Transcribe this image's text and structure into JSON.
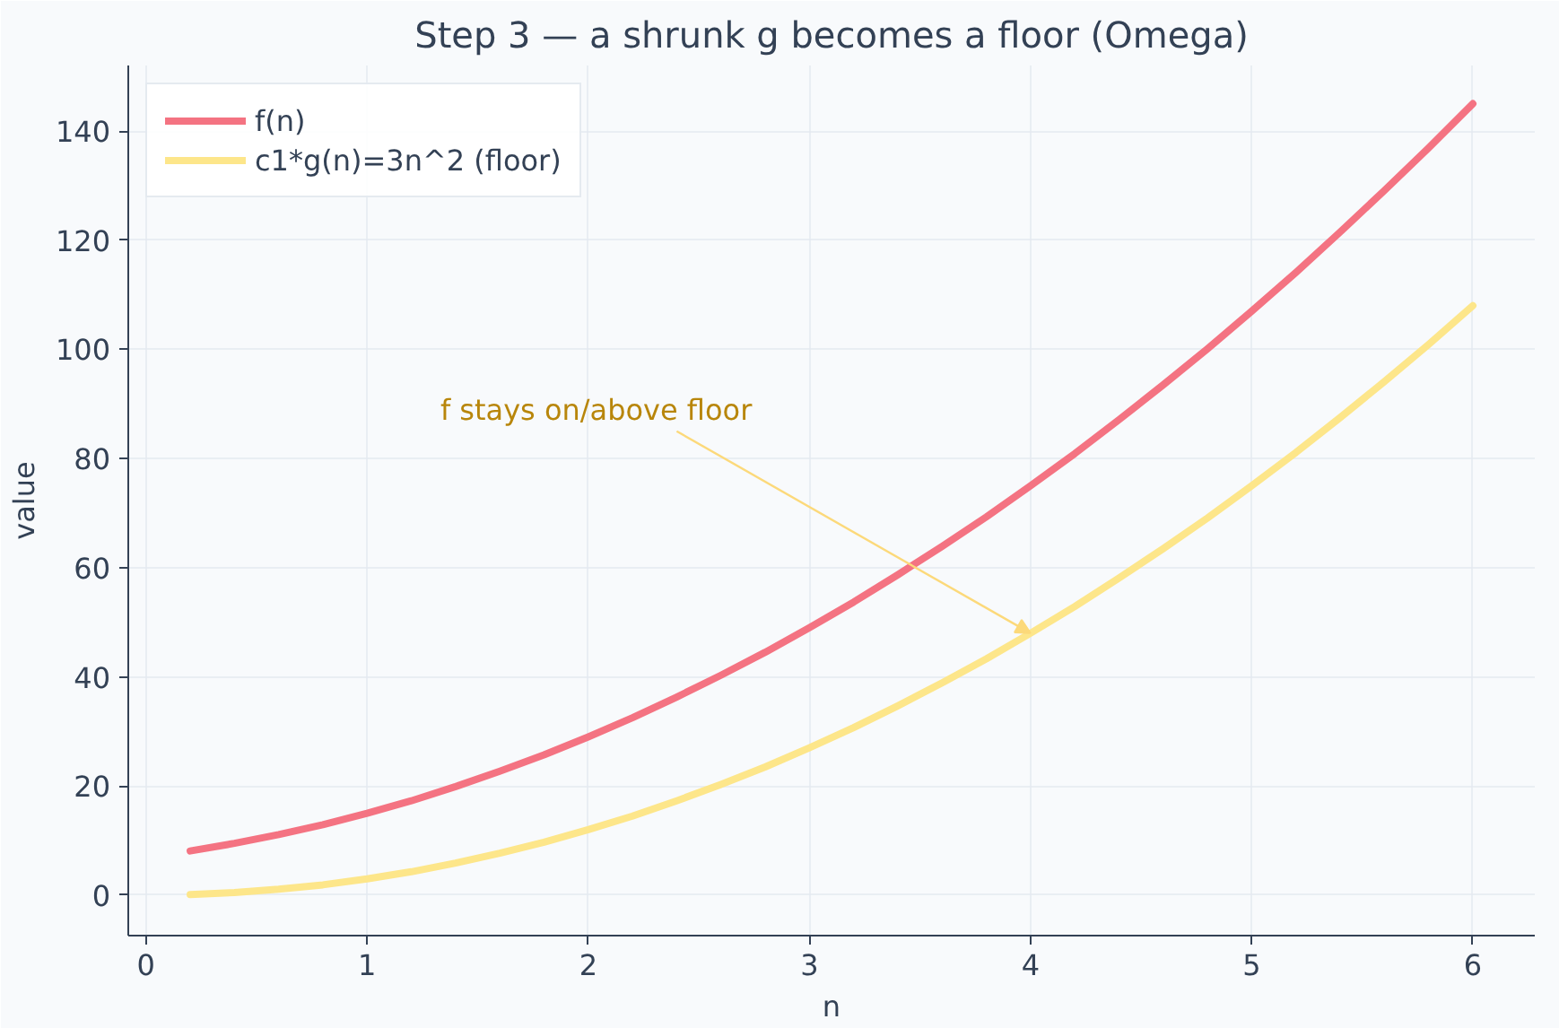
{
  "chart_data": {
    "type": "line",
    "title": "Step 3 — a shrunk g becomes a floor (Omega)",
    "xlabel": "n",
    "ylabel": "value",
    "x": [
      0.2,
      0.4,
      0.6,
      0.8,
      1.0,
      1.2,
      1.4,
      1.6,
      1.8,
      2.0,
      2.2,
      2.4,
      2.6,
      2.8,
      3.0,
      3.2,
      3.4,
      3.6,
      3.8,
      4.0,
      4.2,
      4.4,
      4.6,
      4.8,
      5.0,
      5.2,
      5.4,
      5.6,
      5.8,
      6.0
    ],
    "series": [
      {
        "name": "f(n)",
        "color": "#f47382",
        "values": [
          8.1,
          9.5,
          11.1,
          12.9,
          15,
          17.3,
          19.9,
          22.7,
          25.7,
          29,
          32.5,
          36.3,
          40.3,
          44.5,
          49,
          53.7,
          58.7,
          63.9,
          69.3,
          75,
          80.9,
          87.1,
          93.5,
          100.1,
          107,
          114.1,
          121.5,
          129.1,
          136.9,
          145
        ]
      },
      {
        "name": "c1*g(n)=3n^2 (floor)",
        "color": "#fde68a",
        "values": [
          0.1,
          0.5,
          1.1,
          1.9,
          3,
          4.3,
          5.9,
          7.7,
          9.7,
          12,
          14.5,
          17.3,
          20.3,
          23.5,
          27,
          30.7,
          34.7,
          38.9,
          43.3,
          48,
          52.9,
          58.1,
          63.5,
          69.1,
          75,
          81.1,
          87.5,
          94.1,
          100.9,
          108
        ]
      }
    ],
    "annotations": [
      {
        "text": "f stays on/above floor",
        "x": 4,
        "y": 48
      }
    ],
    "xlim": [
      -0.08,
      6.28
    ],
    "ylim": [
      -7.4,
      152
    ],
    "xticks": [
      0,
      1,
      2,
      3,
      4,
      5,
      6
    ],
    "yticks": [
      0,
      20,
      40,
      60,
      80,
      100,
      120,
      140
    ],
    "grid": true,
    "legend": "top left",
    "marker": "none",
    "line_style": "solid"
  }
}
